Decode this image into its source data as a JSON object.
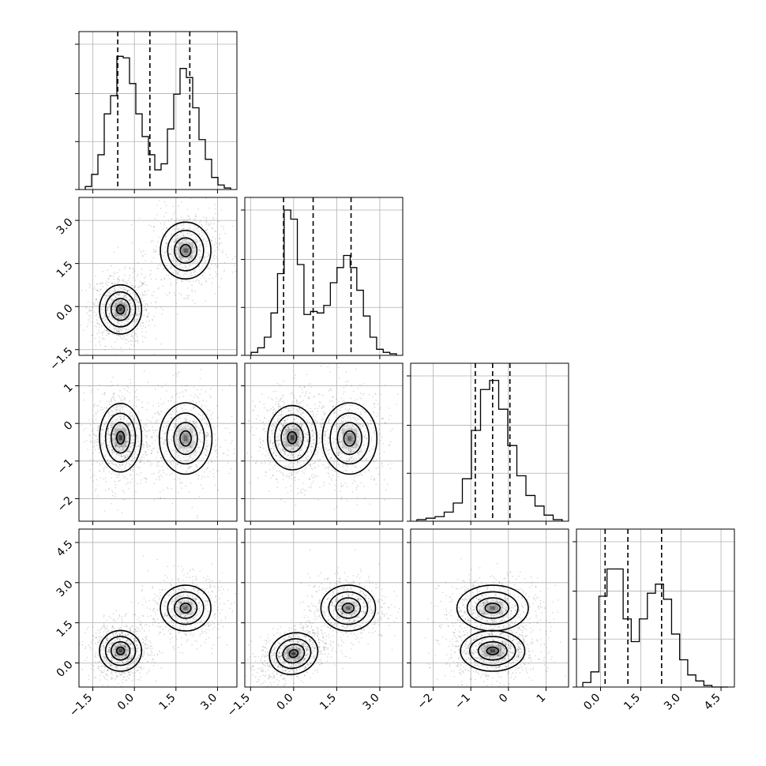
{
  "chart_data": {
    "type": "corner",
    "parameters": [
      {
        "range": [
          -2.0,
          3.7
        ],
        "xticks": [
          "-1.5",
          "0.0",
          "1.5",
          "3.0"
        ],
        "yticks": [],
        "quantiles": [
          -0.6,
          0.56,
          2.0
        ],
        "modes": [
          {
            "mean": -0.5,
            "sd": 0.42,
            "weight": 0.5
          },
          {
            "mean": 1.82,
            "sd": 0.5,
            "weight": 0.5
          }
        ],
        "hist": [
          0.02,
          0.1,
          0.23,
          0.5,
          0.62,
          0.88,
          0.87,
          0.7,
          0.5,
          0.35,
          0.23,
          0.13,
          0.17,
          0.4,
          0.63,
          0.8,
          0.74,
          0.54,
          0.33,
          0.2,
          0.08,
          0.03,
          0.01
        ]
      },
      {
        "range": [
          -1.7,
          3.8
        ],
        "xticks": [
          "-1.5",
          "0.0",
          "1.5",
          "3.0"
        ],
        "yticks": [
          "-1.5",
          "0.0",
          "1.5",
          "3.0"
        ],
        "quantiles": [
          -0.35,
          0.68,
          2.0
        ],
        "modes": [
          {
            "mean": -0.1,
            "sd": 0.45,
            "weight": 0.5
          },
          {
            "mean": 1.9,
            "sd": 0.55,
            "weight": 0.5
          }
        ],
        "hist": [
          0.02,
          0.05,
          0.12,
          0.28,
          0.54,
          0.96,
          0.9,
          0.6,
          0.27,
          0.29,
          0.28,
          0.33,
          0.48,
          0.58,
          0.66,
          0.58,
          0.43,
          0.26,
          0.12,
          0.04,
          0.02,
          0.01
        ]
      },
      {
        "range": [
          -2.6,
          1.6
        ],
        "xticks": [
          "-2",
          "-1",
          "0",
          "1"
        ],
        "yticks": [
          "-2",
          "-1",
          "0",
          "1"
        ],
        "quantiles": [
          -0.88,
          -0.42,
          0.04
        ],
        "modes": [
          {
            "mean": -0.4,
            "sd": 0.48,
            "weight": 1.0
          }
        ],
        "hist": [
          0.01,
          0.02,
          0.03,
          0.06,
          0.12,
          0.28,
          0.6,
          0.87,
          0.93,
          0.74,
          0.5,
          0.3,
          0.17,
          0.1,
          0.04,
          0.01
        ]
      },
      {
        "range": [
          -0.9,
          5.0
        ],
        "xticks": [
          "0.0",
          "1.5",
          "3.0",
          "4.5"
        ],
        "yticks": [
          "0.0",
          "1.5",
          "3.0",
          "4.5"
        ],
        "quantiles": [
          0.17,
          1.02,
          2.28
        ],
        "modes": [
          {
            "mean": 0.45,
            "sd": 0.42,
            "weight": 0.5
          },
          {
            "mean": 2.1,
            "sd": 0.42,
            "weight": 0.5
          }
        ],
        "hist": [
          0.03,
          0.1,
          0.6,
          0.78,
          0.78,
          0.45,
          0.3,
          0.45,
          0.62,
          0.68,
          0.58,
          0.35,
          0.18,
          0.08,
          0.04,
          0.01,
          0.0,
          0.0
        ]
      }
    ],
    "pairs": [
      {
        "x": 0,
        "y": 1,
        "modes": [
          {
            "cx": -0.5,
            "cy": -0.1,
            "sx": 0.4,
            "sy": 0.45,
            "w": 1.0
          },
          {
            "cx": 1.85,
            "cy": 1.95,
            "sx": 0.48,
            "sy": 0.52,
            "w": 0.78
          }
        ]
      },
      {
        "x": 0,
        "y": 2,
        "modes": [
          {
            "cx": -0.5,
            "cy": -0.38,
            "sx": 0.4,
            "sy": 0.48,
            "w": 1.0
          },
          {
            "cx": 1.85,
            "cy": -0.4,
            "sx": 0.5,
            "sy": 0.5,
            "w": 0.68
          }
        ]
      },
      {
        "x": 1,
        "y": 2,
        "modes": [
          {
            "cx": -0.05,
            "cy": -0.38,
            "sx": 0.45,
            "sy": 0.45,
            "w": 1.0
          },
          {
            "cx": 1.95,
            "cy": -0.4,
            "sx": 0.5,
            "sy": 0.5,
            "w": 0.7
          }
        ]
      },
      {
        "x": 0,
        "y": 3,
        "modes": [
          {
            "cx": -0.5,
            "cy": 0.45,
            "sx": 0.4,
            "sy": 0.4,
            "w": 1.0
          },
          {
            "cx": 1.85,
            "cy": 2.05,
            "sx": 0.48,
            "sy": 0.45,
            "w": 0.72
          }
        ]
      },
      {
        "x": 1,
        "y": 3,
        "modes": [
          {
            "cx": 0.0,
            "cy": 0.35,
            "sx": 0.45,
            "sy": 0.4,
            "w": 1.0,
            "rho": 0.35
          },
          {
            "cx": 1.9,
            "cy": 2.05,
            "sx": 0.5,
            "sy": 0.45,
            "w": 0.72
          }
        ]
      },
      {
        "x": 2,
        "y": 3,
        "modes": [
          {
            "cx": -0.42,
            "cy": 0.45,
            "sx": 0.45,
            "sy": 0.4,
            "w": 1.0
          },
          {
            "cx": -0.42,
            "cy": 2.05,
            "sx": 0.5,
            "sy": 0.45,
            "w": 0.68
          }
        ]
      }
    ]
  }
}
